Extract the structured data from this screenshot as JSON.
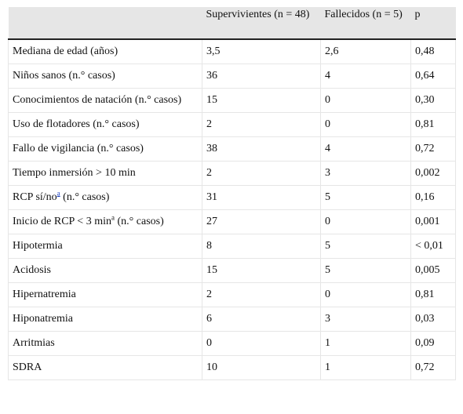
{
  "table": {
    "headers": [
      "",
      "Supervivientes (n = 48)",
      "Fallecidos (n = 5)",
      "p"
    ],
    "rows": [
      {
        "label": "Mediana de edad (años)",
        "surv": "3,5",
        "dead": "2,6",
        "p": "0,48"
      },
      {
        "label": "Niños sanos (n.° casos)",
        "surv": "36",
        "dead": "4",
        "p": "0,64"
      },
      {
        "label": "Conocimientos de natación (n.° casos)",
        "surv": "15",
        "dead": "0",
        "p": "0,30"
      },
      {
        "label": "Uso de flotadores (n.° casos)",
        "surv": "2",
        "dead": "0",
        "p": "0,81"
      },
      {
        "label": "Fallo de vigilancia (n.° casos)",
        "surv": "38",
        "dead": "4",
        "p": "0,72"
      },
      {
        "label": "Tiempo inmersión > 10 min",
        "surv": "2",
        "dead": "3",
        "p": "0,002"
      },
      {
        "label_pre": "RCP sí/no",
        "label_sup": "a",
        "label_post": " (n.° casos)",
        "surv": "31",
        "dead": "5",
        "p": "0,16"
      },
      {
        "label_pre": "Inicio de RCP < 3 min",
        "label_sup": "a",
        "label_post": " (n.° casos)",
        "surv": "27",
        "dead": "0",
        "p": "0,001"
      },
      {
        "label": "Hipotermia",
        "surv": "8",
        "dead": "5",
        "p": "< 0,01"
      },
      {
        "label": "Acidosis",
        "surv": "15",
        "dead": "5",
        "p": "0,005"
      },
      {
        "label": "Hipernatremia",
        "surv": "2",
        "dead": "0",
        "p": "0,81"
      },
      {
        "label": "Hiponatremia",
        "surv": "6",
        "dead": "3",
        "p": "0,03"
      },
      {
        "label": "Arritmias",
        "surv": "0",
        "dead": "1",
        "p": "0,09"
      },
      {
        "label": "SDRA",
        "surv": "10",
        "dead": "1",
        "p": "0,72"
      }
    ]
  }
}
